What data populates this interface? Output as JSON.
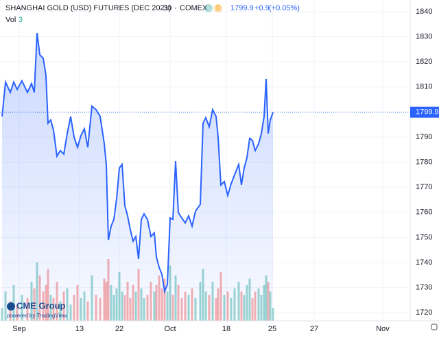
{
  "chart_data": {
    "type": "area",
    "title": "SHANGHAI GOLD (USD) FUTURES (DEC 2021)",
    "interval": "30",
    "exchange": "COMEX",
    "quote": {
      "last": "1799.9",
      "change": "+0.9",
      "change_pct": "(+0.05%)"
    },
    "volume_label": "Vol",
    "volume_last": "3",
    "brand": "CME Group",
    "powered_by": "powered by TradingView",
    "last_value": 1799.9,
    "color": "#2962ff",
    "up_color": "#26a69a",
    "down_color": "#ef5350",
    "x": [
      3,
      8,
      15,
      20,
      25,
      32,
      40,
      46,
      50,
      54,
      58,
      63,
      67,
      70,
      74,
      78,
      83,
      88,
      93,
      98,
      103,
      108,
      113,
      118,
      123,
      128,
      134,
      140,
      146,
      152,
      155,
      158,
      162,
      166,
      170,
      174,
      178,
      182,
      186,
      190,
      194,
      198,
      202,
      206,
      210,
      215,
      220,
      225,
      228,
      232,
      236,
      240,
      244,
      248,
      252,
      256,
      260,
      265,
      270,
      275,
      280,
      285,
      292,
      296,
      300,
      305,
      310,
      315,
      318,
      322,
      327,
      332,
      337,
      342,
      348,
      352,
      356,
      360,
      364,
      368,
      372,
      377,
      381,
      385,
      388,
      391,
      394,
      398
    ],
    "values": [
      1798.2,
      1811.9,
      1807.8,
      1811.9,
      1809,
      1812.4,
      1807.8,
      1811.3,
      1807.8,
      1831.5,
      1822.8,
      1821.4,
      1814.6,
      1795.5,
      1796.8,
      1792.7,
      1782.4,
      1784.6,
      1783.2,
      1791.4,
      1798.2,
      1790,
      1785.9,
      1790.6,
      1793.3,
      1785.9,
      1802.3,
      1800.9,
      1798.2,
      1787.3,
      1779.1,
      1749,
      1754.5,
      1757.2,
      1765.4,
      1777.7,
      1779.1,
      1762.7,
      1758.6,
      1753.1,
      1748.5,
      1750.4,
      1741.4,
      1757.2,
      1759.4,
      1757.2,
      1750.4,
      1751.8,
      1742.2,
      1738.1,
      1735.4,
      1728.5,
      1731.3,
      1757.8,
      1757.2,
      1780.4,
      1759.9,
      1757.8,
      1755.8,
      1758.6,
      1754.5,
      1760.5,
      1763.2,
      1795.5,
      1797.7,
      1794.1,
      1800.9,
      1798.2,
      1790,
      1770.9,
      1772.3,
      1766.8,
      1771.4,
      1775,
      1779.1,
      1770.9,
      1777.7,
      1781.8,
      1789.5,
      1788.7,
      1784.6,
      1787.3,
      1791.4,
      1798.2,
      1813.2,
      1791.4,
      1796.8,
      1799.9
    ],
    "volume": [
      20,
      45,
      30,
      55,
      25,
      40,
      35,
      60,
      50,
      90,
      70,
      45,
      55,
      80,
      40,
      35,
      60,
      30,
      45,
      50,
      25,
      40,
      55,
      35,
      45,
      30,
      70,
      40,
      35,
      65,
      60,
      95,
      55,
      40,
      50,
      75,
      45,
      40,
      60,
      35,
      55,
      45,
      80,
      50,
      35,
      40,
      60,
      45,
      55,
      70,
      50,
      65,
      45,
      85,
      40,
      70,
      55,
      35,
      45,
      40,
      50,
      35,
      60,
      80,
      45,
      40,
      60,
      35,
      50,
      75,
      40,
      45,
      35,
      50,
      60,
      45,
      40,
      55,
      65,
      35,
      45,
      50,
      40,
      55,
      70,
      60,
      45,
      20
    ],
    "xlim": [
      0,
      598
    ],
    "ylim": [
      1716.8,
      1844.6
    ],
    "xticks": [
      {
        "value": 28,
        "label": "Sep"
      },
      {
        "value": 116,
        "label": "13"
      },
      {
        "value": 174,
        "label": "22"
      },
      {
        "value": 248,
        "label": "Oct"
      },
      {
        "value": 330,
        "label": "18"
      },
      {
        "value": 397,
        "label": "25"
      },
      {
        "value": 458,
        "label": "27"
      },
      {
        "value": 558,
        "label": "Nov"
      }
    ],
    "yticks": [
      1720,
      1730,
      1740,
      1750,
      1760,
      1770,
      1780,
      1790,
      1800,
      1810,
      1820,
      1830,
      1840
    ]
  }
}
